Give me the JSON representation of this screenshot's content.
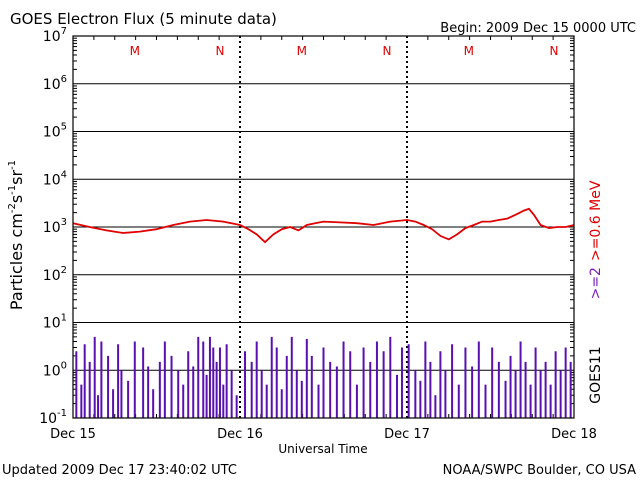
{
  "header": {
    "title": "GOES Electron Flux (5 minute data)",
    "begin": "Begin: 2009 Dec 15 0000 UTC"
  },
  "footer": {
    "updated": "Updated 2009 Dec 17 23:40:02 UTC",
    "credit": "NOAA/SWPC Boulder, CO USA"
  },
  "colors": {
    "series_high": "#e00000",
    "series_low": "#5a10b0",
    "marker": "#e00000",
    "right_label_red": "#e00000",
    "right_label_purple": "#7a20c0"
  },
  "right_labels": {
    "energy_red": ">=0.6 MeV",
    "energy_purple": ">=2",
    "satellite": "GOES11"
  },
  "chart_data": {
    "type": "line",
    "yscale": "log",
    "ylim": [
      0.1,
      10000000
    ],
    "xlim_days": [
      0,
      3
    ],
    "y_ticks": [
      {
        "value": 0.1,
        "base": "10",
        "exp": "-1"
      },
      {
        "value": 1,
        "base": "10",
        "exp": "0"
      },
      {
        "value": 10,
        "base": "10",
        "exp": "1"
      },
      {
        "value": 100,
        "base": "10",
        "exp": "2"
      },
      {
        "value": 1000,
        "base": "10",
        "exp": "3"
      },
      {
        "value": 10000,
        "base": "10",
        "exp": "4"
      },
      {
        "value": 100000,
        "base": "10",
        "exp": "5"
      },
      {
        "value": 1000000,
        "base": "10",
        "exp": "6"
      },
      {
        "value": 10000000,
        "base": "10",
        "exp": "7"
      }
    ],
    "x_ticks": [
      {
        "day": 0,
        "label": "Dec 15"
      },
      {
        "day": 1,
        "label": "Dec 16"
      },
      {
        "day": 2,
        "label": "Dec 17"
      },
      {
        "day": 3,
        "label": "Dec 18"
      }
    ],
    "xlabel": "Universal Time",
    "ylabel": {
      "base": "Particles cm",
      "exp1": "-2",
      "mid1": "s",
      "exp2": "-1",
      "mid2": "sr",
      "exp3": "-1"
    },
    "threshold": 1000,
    "markers": [
      {
        "day": 0.37,
        "label": "M"
      },
      {
        "day": 0.88,
        "label": "N"
      },
      {
        "day": 1.37,
        "label": "M"
      },
      {
        "day": 1.88,
        "label": "N"
      },
      {
        "day": 2.37,
        "label": "M"
      },
      {
        "day": 2.88,
        "label": "N"
      }
    ],
    "series": [
      {
        "name": ">=0.6 MeV",
        "style": "line",
        "x": [
          0,
          0.1,
          0.2,
          0.3,
          0.4,
          0.5,
          0.6,
          0.7,
          0.8,
          0.9,
          1.0,
          1.05,
          1.1,
          1.15,
          1.2,
          1.25,
          1.3,
          1.35,
          1.4,
          1.45,
          1.5,
          1.6,
          1.7,
          1.8,
          1.9,
          2.0,
          2.05,
          2.1,
          2.15,
          2.2,
          2.25,
          2.3,
          2.35,
          2.4,
          2.45,
          2.5,
          2.55,
          2.6,
          2.65,
          2.7,
          2.73,
          2.76,
          2.8,
          2.85,
          2.9,
          2.95,
          3.0
        ],
        "y": [
          1200,
          1000,
          850,
          750,
          800,
          900,
          1100,
          1300,
          1400,
          1300,
          1100,
          900,
          700,
          480,
          700,
          900,
          1000,
          850,
          1100,
          1200,
          1300,
          1250,
          1200,
          1100,
          1300,
          1400,
          1300,
          1100,
          900,
          650,
          550,
          700,
          950,
          1100,
          1300,
          1300,
          1400,
          1500,
          1800,
          2200,
          2400,
          1800,
          1100,
          950,
          1000,
          1000,
          1100
        ]
      },
      {
        "name": ">=2",
        "style": "spikes",
        "x": [
          0.02,
          0.05,
          0.07,
          0.1,
          0.13,
          0.15,
          0.17,
          0.21,
          0.24,
          0.27,
          0.29,
          0.33,
          0.37,
          0.42,
          0.45,
          0.48,
          0.52,
          0.55,
          0.59,
          0.63,
          0.66,
          0.69,
          0.72,
          0.75,
          0.78,
          0.8,
          0.82,
          0.84,
          0.86,
          0.88,
          0.9,
          0.92,
          0.95,
          0.98,
          1.03,
          1.07,
          1.1,
          1.13,
          1.16,
          1.19,
          1.22,
          1.25,
          1.28,
          1.31,
          1.34,
          1.37,
          1.4,
          1.43,
          1.47,
          1.5,
          1.54,
          1.58,
          1.62,
          1.66,
          1.7,
          1.74,
          1.78,
          1.82,
          1.86,
          1.9,
          1.94,
          1.97,
          2.01,
          2.05,
          2.08,
          2.11,
          2.14,
          2.17,
          2.2,
          2.23,
          2.27,
          2.31,
          2.35,
          2.39,
          2.43,
          2.47,
          2.51,
          2.55,
          2.59,
          2.62,
          2.65,
          2.68,
          2.71,
          2.74,
          2.77,
          2.8,
          2.83,
          2.86,
          2.89,
          2.92,
          2.95,
          2.98
        ],
        "y": [
          2.5,
          0.5,
          3.5,
          1.5,
          5,
          0.3,
          4,
          2,
          0.4,
          3.5,
          1,
          0.6,
          4,
          3,
          1.2,
          0.4,
          1.5,
          4,
          2,
          1,
          0.5,
          2.5,
          1.2,
          5,
          4,
          0.8,
          5,
          3,
          1.5,
          3,
          0.5,
          3.5,
          1,
          0.3,
          2.5,
          1.5,
          4,
          1,
          0.5,
          5,
          3,
          0.4,
          2,
          5,
          1,
          0.6,
          4.5,
          2,
          0.5,
          3,
          1.5,
          1.2,
          4,
          2.5,
          0.5,
          3,
          1.5,
          4,
          2.5,
          5,
          0.8,
          3,
          3.5,
          1,
          0.6,
          4,
          1.5,
          0.3,
          2.5,
          1,
          3.5,
          0.5,
          3,
          1.2,
          4,
          0.5,
          3,
          1.5,
          0.6,
          2,
          1,
          4,
          1.5,
          0.5,
          3,
          1,
          1.5,
          0.5,
          2.5,
          1,
          3,
          1.5
        ]
      }
    ]
  }
}
